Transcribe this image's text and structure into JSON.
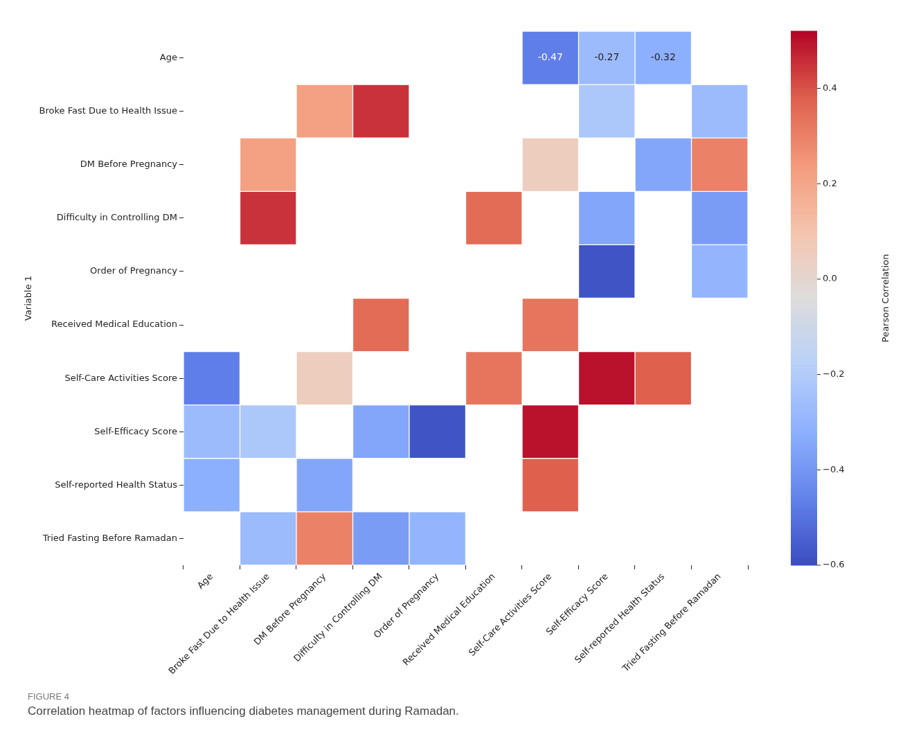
{
  "chart_data": {
    "type": "heatmap",
    "ylabel": "Variable 1",
    "clabel": "Pearson Correlation",
    "categories": [
      "Age",
      "Broke Fast Due to Health Issue",
      "DM Before Pregnancy",
      "Difficulty in Controlling DM",
      "Order of Pregnancy",
      "Received Medical Education",
      "Self-Care Activities Score",
      "Self-Efficacy Score",
      "Self-reported Health Status",
      "Tried Fasting Before Ramadan"
    ],
    "y_categories": [
      "Age",
      "Broke Fast Due to Health Issue",
      "DM Before Pregnancy",
      "Difficulty in Controlling DM",
      "Order of Pregnancy",
      "Received Medical Education",
      "Self-Care Activities Score",
      "Self-Efficacy Score",
      "Self-reported Health Status",
      "Tried Fasting Before Ramadan"
    ],
    "cells": [
      [
        null,
        null,
        null,
        null,
        null,
        null,
        -0.47,
        -0.27,
        -0.32,
        null
      ],
      [
        null,
        null,
        0.22,
        0.45,
        null,
        null,
        null,
        -0.22,
        null,
        -0.27
      ],
      [
        null,
        0.22,
        null,
        null,
        null,
        null,
        0.05,
        null,
        -0.35,
        0.3
      ],
      [
        null,
        0.45,
        null,
        null,
        null,
        0.35,
        null,
        -0.35,
        null,
        -0.38
      ],
      [
        null,
        null,
        null,
        null,
        null,
        null,
        null,
        -0.58,
        null,
        -0.3
      ],
      [
        null,
        null,
        null,
        0.35,
        null,
        null,
        0.33,
        null,
        null,
        null
      ],
      [
        -0.47,
        null,
        0.05,
        null,
        null,
        0.33,
        null,
        0.5,
        0.38,
        null
      ],
      [
        -0.27,
        -0.22,
        null,
        -0.35,
        -0.58,
        null,
        0.5,
        null,
        null,
        null
      ],
      [
        -0.32,
        null,
        -0.35,
        null,
        null,
        null,
        0.38,
        null,
        null,
        null
      ],
      [
        null,
        -0.27,
        0.3,
        -0.38,
        -0.3,
        null,
        null,
        null,
        null,
        null
      ]
    ],
    "cell_labels": [
      [
        null,
        null,
        null,
        null,
        null,
        null,
        "-0.47",
        "-0.27",
        "-0.32",
        null
      ],
      [
        null,
        null,
        null,
        null,
        null,
        null,
        null,
        null,
        null,
        null
      ],
      [
        null,
        null,
        null,
        null,
        null,
        null,
        null,
        null,
        null,
        null
      ],
      [
        null,
        null,
        null,
        null,
        null,
        null,
        null,
        null,
        null,
        null
      ],
      [
        null,
        null,
        null,
        null,
        null,
        null,
        null,
        null,
        null,
        null
      ],
      [
        null,
        null,
        null,
        null,
        null,
        null,
        null,
        null,
        null,
        null
      ],
      [
        null,
        null,
        null,
        null,
        null,
        null,
        null,
        null,
        null,
        null
      ],
      [
        null,
        null,
        null,
        null,
        null,
        null,
        null,
        null,
        null,
        null
      ],
      [
        null,
        null,
        null,
        null,
        null,
        null,
        null,
        null,
        null,
        null
      ],
      [
        null,
        null,
        null,
        null,
        null,
        null,
        null,
        null,
        null,
        null
      ]
    ],
    "clim": [
      -0.6,
      0.52
    ],
    "cticks": [
      {
        "value": 0.4,
        "label": "0.4"
      },
      {
        "value": 0.2,
        "label": "0.2"
      },
      {
        "value": 0,
        "label": "0.0"
      },
      {
        "value": -0.2,
        "label": "−0.2"
      },
      {
        "value": -0.4,
        "label": "−0.4"
      },
      {
        "value": -0.6,
        "label": "−0.6"
      }
    ],
    "annotations": [
      "FIGURE 4",
      "Correlation heatmap of factors influencing diabetes management during Ramadan."
    ]
  }
}
